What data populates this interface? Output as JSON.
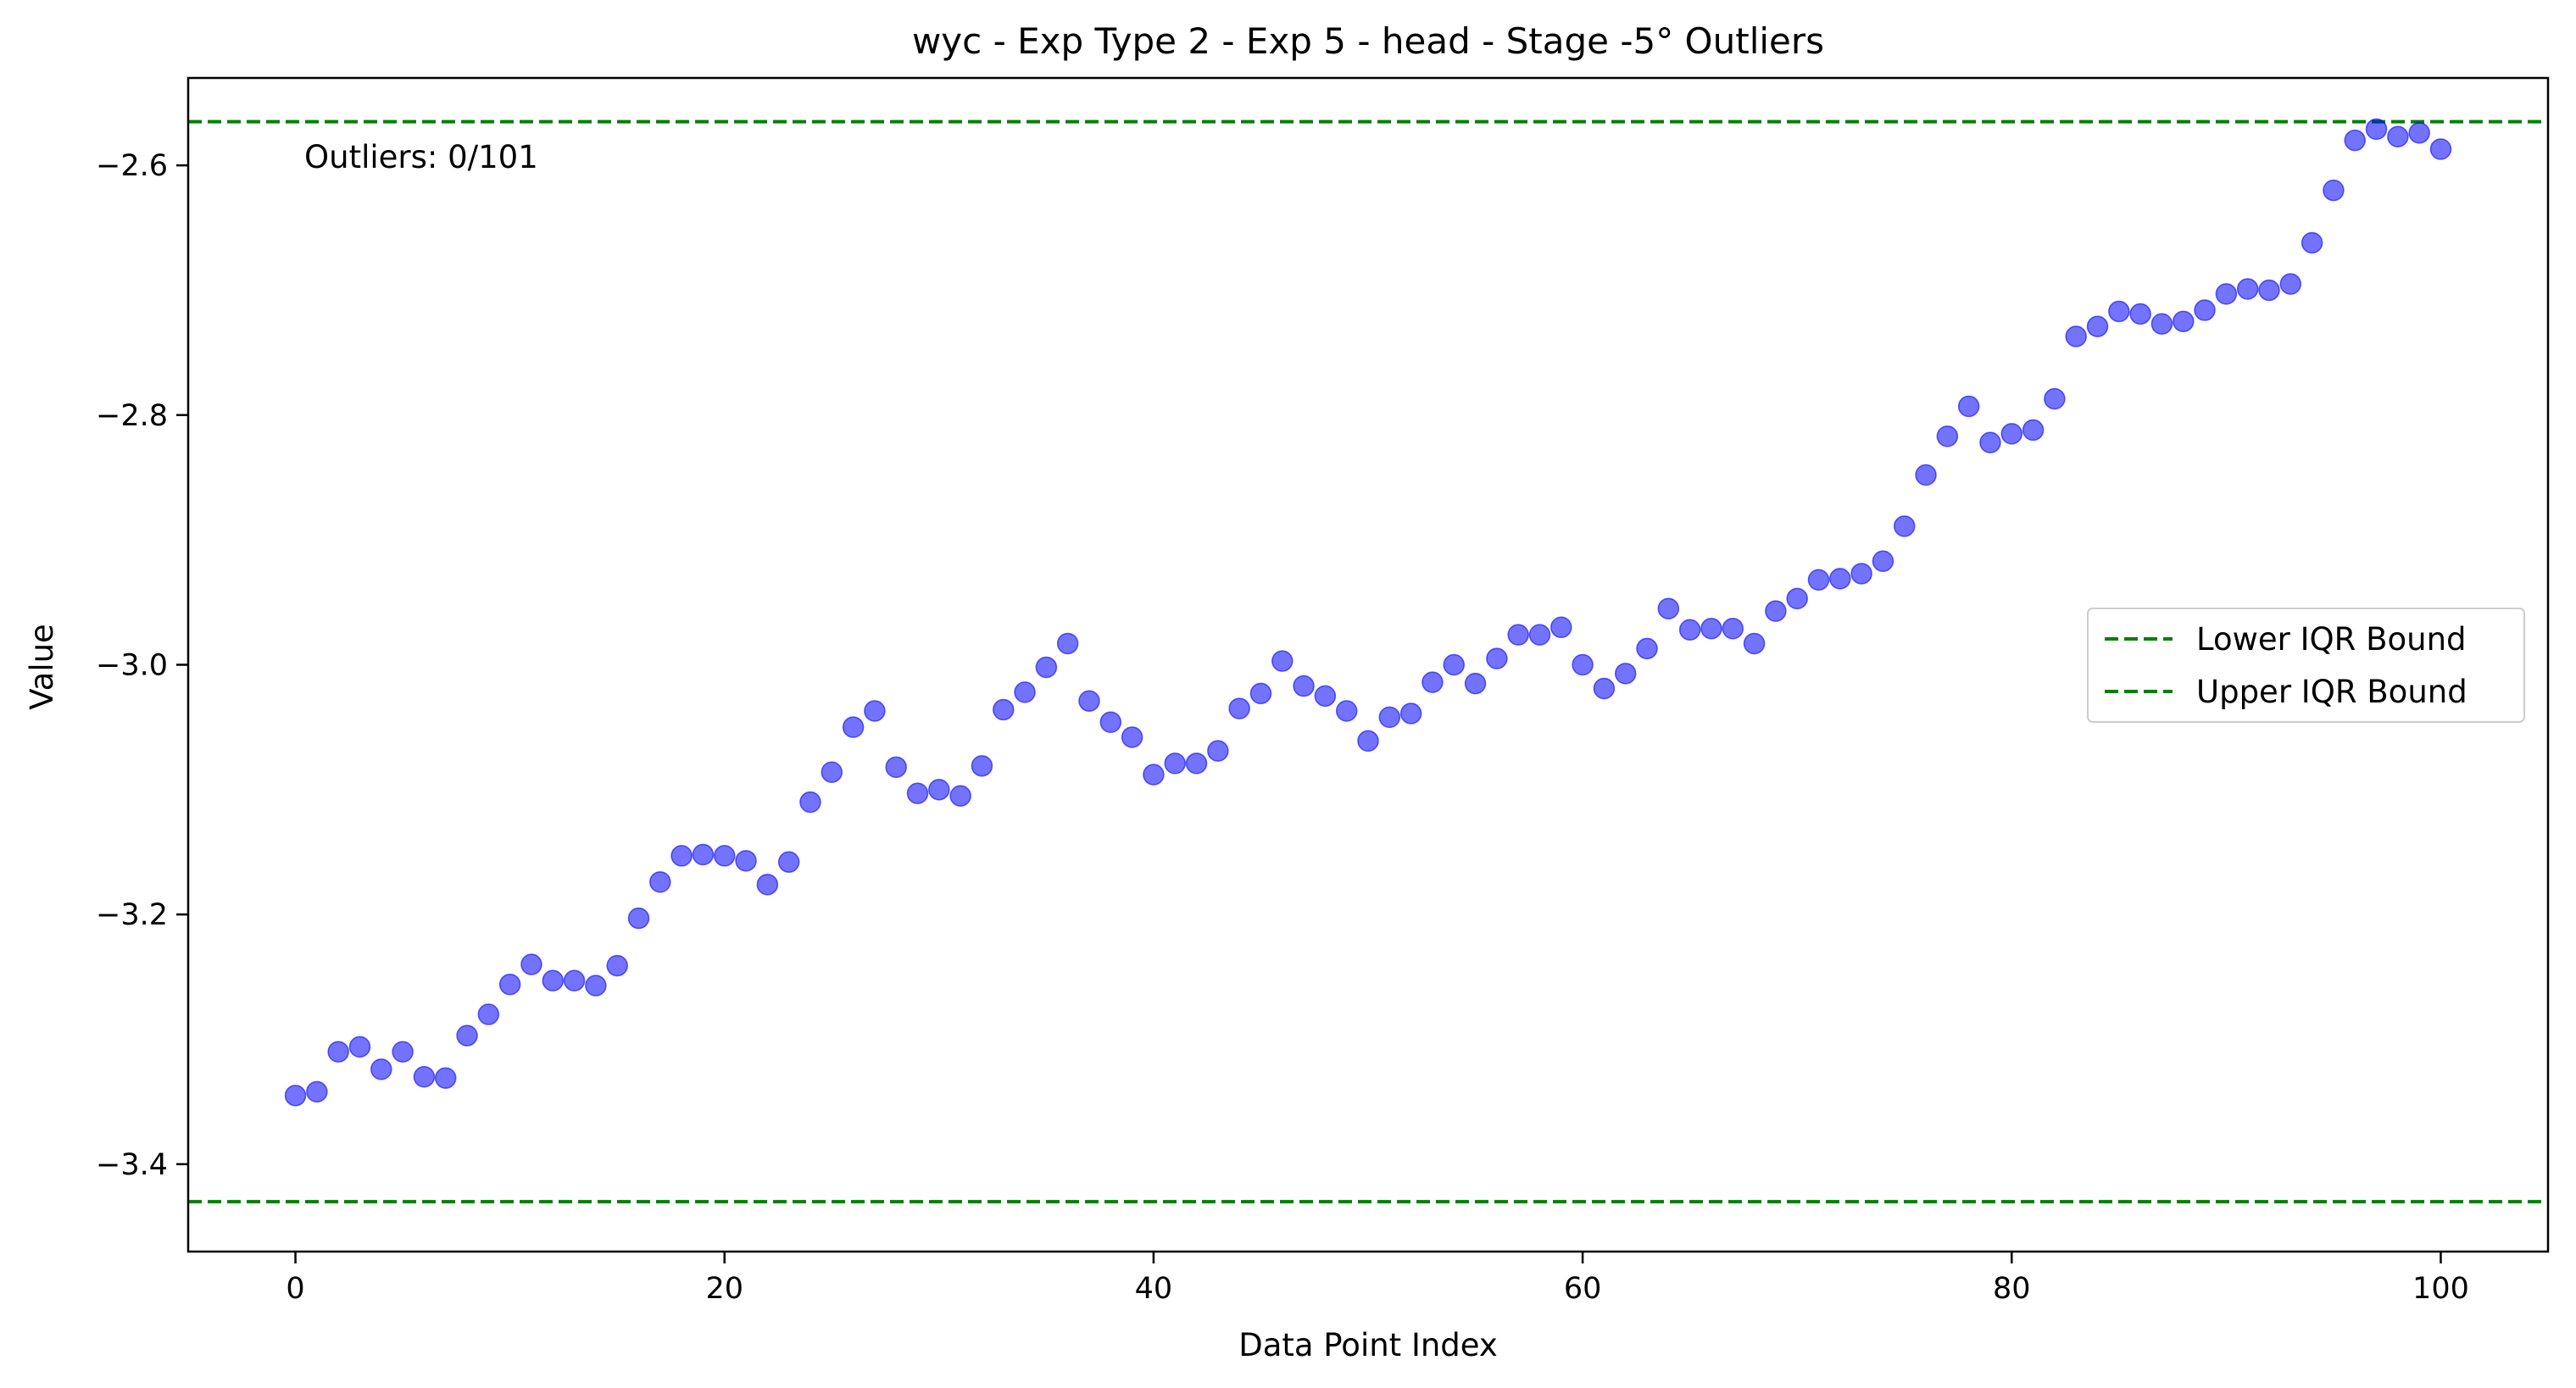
{
  "chart_data": {
    "type": "scatter",
    "title": "wyc - Exp Type 2 - Exp 5 - head - Stage -5° Outliers",
    "xlabel": "Data Point Index",
    "ylabel": "Value",
    "xlim": [
      -5,
      105
    ],
    "ylim": [
      -3.47,
      -2.53
    ],
    "xticks": [
      0,
      20,
      40,
      60,
      80,
      100
    ],
    "yticks": [
      -3.4,
      -3.2,
      -3.0,
      -2.8,
      -2.6
    ],
    "xtick_labels": [
      "0",
      "20",
      "40",
      "60",
      "80",
      "100"
    ],
    "ytick_labels": [
      "−3.4",
      "−3.2",
      "−3.0",
      "−2.8",
      "−2.6"
    ],
    "grid": false,
    "legend_position": "center-right",
    "annotation": "Outliers: 0/101",
    "point_color": "#0000ff",
    "point_alpha": 0.55,
    "bound_color": "#008000",
    "bounds": [
      {
        "name": "Lower IQR Bound",
        "value": -3.43
      },
      {
        "name": "Upper IQR Bound",
        "value": -2.565
      }
    ],
    "series": [
      {
        "x": [
          0,
          1,
          2,
          3,
          4,
          5,
          6,
          7,
          8,
          9,
          10,
          11,
          12,
          13,
          14,
          15,
          16,
          17,
          18,
          19,
          20,
          21,
          22,
          23,
          24,
          25,
          26,
          27,
          28,
          29,
          30,
          31,
          32,
          33,
          34,
          35,
          36,
          37,
          38,
          39,
          40,
          41,
          42,
          43,
          44,
          45,
          46,
          47,
          48,
          49,
          50,
          51,
          52,
          53,
          54,
          55,
          56,
          57,
          58,
          59,
          60,
          61,
          62,
          63,
          64,
          65,
          66,
          67,
          68,
          69,
          70,
          71,
          72,
          73,
          74,
          75,
          76,
          77,
          78,
          79,
          80,
          81,
          82,
          83,
          84,
          85,
          86,
          87,
          88,
          89,
          90,
          91,
          92,
          93,
          94,
          95,
          96,
          97,
          98,
          99,
          100
        ],
        "values": [
          -3.345,
          -3.342,
          -3.31,
          -3.306,
          -3.324,
          -3.31,
          -3.33,
          -3.331,
          -3.297,
          -3.28,
          -3.256,
          -3.24,
          -3.253,
          -3.253,
          -3.257,
          -3.241,
          -3.203,
          -3.174,
          -3.153,
          -3.152,
          -3.153,
          -3.157,
          -3.176,
          -3.158,
          -3.11,
          -3.086,
          -3.05,
          -3.037,
          -3.082,
          -3.103,
          -3.1,
          -3.105,
          -3.081,
          -3.036,
          -3.022,
          -3.002,
          -2.983,
          -3.029,
          -3.046,
          -3.058,
          -3.088,
          -3.079,
          -3.079,
          -3.069,
          -3.035,
          -3.023,
          -2.997,
          -3.017,
          -3.025,
          -3.037,
          -3.061,
          -3.042,
          -3.039,
          -3.014,
          -3.0,
          -3.015,
          -2.995,
          -2.976,
          -2.976,
          -2.97,
          -3.0,
          -3.019,
          -3.007,
          -2.987,
          -2.955,
          -2.972,
          -2.971,
          -2.971,
          -2.983,
          -2.957,
          -2.947,
          -2.932,
          -2.931,
          -2.927,
          -2.917,
          -2.889,
          -2.848,
          -2.817,
          -2.793,
          -2.822,
          -2.815,
          -2.812,
          -2.787,
          -2.737,
          -2.729,
          -2.717,
          -2.719,
          -2.727,
          -2.725,
          -2.716,
          -2.703,
          -2.699,
          -2.7,
          -2.695,
          -2.662,
          -2.62,
          -2.58,
          -2.571,
          -2.577,
          -2.574,
          -2.587
        ]
      }
    ]
  }
}
